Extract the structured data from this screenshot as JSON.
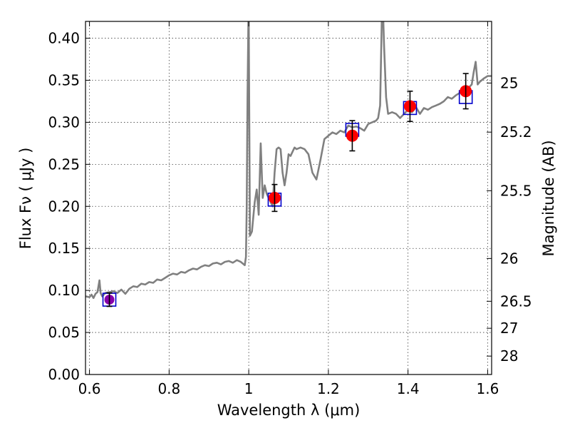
{
  "chart_data": {
    "type": "line",
    "title": "",
    "xlabel": "Wavelength λ (μm)",
    "ylabel": "Flux Fν ( μJy )",
    "ylabel_right": "Magnitude (AB)",
    "xlim": [
      0.59,
      1.61
    ],
    "ylim": [
      0.0,
      0.42
    ],
    "grid": true,
    "x_ticks": [
      0.6,
      0.8,
      1.0,
      1.2,
      1.4,
      1.6
    ],
    "x_tick_labels": [
      "0.6",
      "0.8",
      "1",
      "1.2",
      "1.4",
      "1.6"
    ],
    "y_ticks": [
      0.0,
      0.05,
      0.1,
      0.15,
      0.2,
      0.25,
      0.3,
      0.35,
      0.4
    ],
    "y_tick_labels": [
      "0.00",
      "0.05",
      "0.10",
      "0.15",
      "0.20",
      "0.25",
      "0.30",
      "0.35",
      "0.40"
    ],
    "right_ticks": [
      {
        "flux": 0.3467,
        "label": "25"
      },
      {
        "flux": 0.2883,
        "label": "25.2"
      },
      {
        "flux": 0.2186,
        "label": "25.5"
      },
      {
        "flux": 0.138,
        "label": "26"
      },
      {
        "flux": 0.0871,
        "label": "26.5"
      },
      {
        "flux": 0.055,
        "label": "27"
      },
      {
        "flux": 0.0219,
        "label": "28"
      }
    ],
    "colors": {
      "spectrum": "#808080",
      "model_box": "#0000cc",
      "observed": "#ff0000",
      "purple_dot": "#8800aa",
      "errorbar": "#000000"
    },
    "series": [
      {
        "kind": "spectrum",
        "x": [
          0.59,
          0.6,
          0.605,
          0.61,
          0.615,
          0.62,
          0.625,
          0.628,
          0.632,
          0.64,
          0.65,
          0.66,
          0.67,
          0.68,
          0.69,
          0.7,
          0.71,
          0.72,
          0.73,
          0.74,
          0.75,
          0.76,
          0.77,
          0.78,
          0.79,
          0.8,
          0.81,
          0.82,
          0.83,
          0.84,
          0.85,
          0.86,
          0.87,
          0.88,
          0.89,
          0.9,
          0.91,
          0.92,
          0.93,
          0.94,
          0.95,
          0.96,
          0.97,
          0.98,
          0.99,
          0.993,
          0.995,
          0.997,
          0.999,
          1.0,
          1.003,
          1.008,
          1.012,
          1.015,
          1.02,
          1.025,
          1.03,
          1.035,
          1.04,
          1.045,
          1.05,
          1.055,
          1.06,
          1.065,
          1.07,
          1.075,
          1.08,
          1.085,
          1.09,
          1.095,
          1.1,
          1.105,
          1.11,
          1.115,
          1.12,
          1.13,
          1.14,
          1.15,
          1.16,
          1.17,
          1.18,
          1.19,
          1.2,
          1.21,
          1.22,
          1.23,
          1.24,
          1.25,
          1.26,
          1.27,
          1.28,
          1.29,
          1.3,
          1.31,
          1.32,
          1.325,
          1.33,
          1.334,
          1.336,
          1.338,
          1.34,
          1.345,
          1.35,
          1.36,
          1.37,
          1.38,
          1.39,
          1.4,
          1.41,
          1.42,
          1.43,
          1.44,
          1.45,
          1.46,
          1.47,
          1.48,
          1.49,
          1.5,
          1.51,
          1.52,
          1.53,
          1.54,
          1.55,
          1.56,
          1.565,
          1.57,
          1.575,
          1.58,
          1.59,
          1.6,
          1.61
        ],
        "y": [
          0.093,
          0.092,
          0.095,
          0.091,
          0.096,
          0.098,
          0.112,
          0.097,
          0.093,
          0.097,
          0.098,
          0.099,
          0.097,
          0.101,
          0.096,
          0.102,
          0.105,
          0.104,
          0.108,
          0.107,
          0.11,
          0.109,
          0.113,
          0.112,
          0.115,
          0.118,
          0.12,
          0.119,
          0.122,
          0.121,
          0.124,
          0.126,
          0.125,
          0.128,
          0.13,
          0.129,
          0.132,
          0.133,
          0.131,
          0.134,
          0.135,
          0.133,
          0.136,
          0.134,
          0.13,
          0.14,
          0.2,
          0.33,
          0.42,
          0.42,
          0.165,
          0.17,
          0.19,
          0.205,
          0.22,
          0.19,
          0.275,
          0.21,
          0.225,
          0.215,
          0.21,
          0.205,
          0.2,
          0.24,
          0.268,
          0.27,
          0.268,
          0.24,
          0.225,
          0.24,
          0.262,
          0.26,
          0.265,
          0.27,
          0.268,
          0.27,
          0.268,
          0.262,
          0.24,
          0.232,
          0.255,
          0.28,
          0.284,
          0.288,
          0.286,
          0.29,
          0.288,
          0.296,
          0.294,
          0.295,
          0.293,
          0.29,
          0.298,
          0.3,
          0.302,
          0.305,
          0.32,
          0.42,
          0.42,
          0.42,
          0.39,
          0.33,
          0.31,
          0.312,
          0.31,
          0.305,
          0.31,
          0.315,
          0.312,
          0.318,
          0.31,
          0.317,
          0.315,
          0.318,
          0.32,
          0.322,
          0.325,
          0.33,
          0.328,
          0.332,
          0.335,
          0.338,
          0.34,
          0.345,
          0.36,
          0.372,
          0.345,
          0.348,
          0.352,
          0.355,
          0.355
        ]
      },
      {
        "kind": "model_boxes",
        "x": [
          0.65,
          1.065,
          1.26,
          1.405,
          1.545
        ],
        "y": [
          0.089,
          0.208,
          0.291,
          0.317,
          0.33
        ]
      },
      {
        "kind": "observed",
        "x": [
          0.65,
          1.065,
          1.26,
          1.405,
          1.545
        ],
        "y": [
          0.089,
          0.21,
          0.284,
          0.319,
          0.337
        ],
        "yerr": [
          0.008,
          0.016,
          0.018,
          0.018,
          0.021
        ]
      }
    ]
  }
}
